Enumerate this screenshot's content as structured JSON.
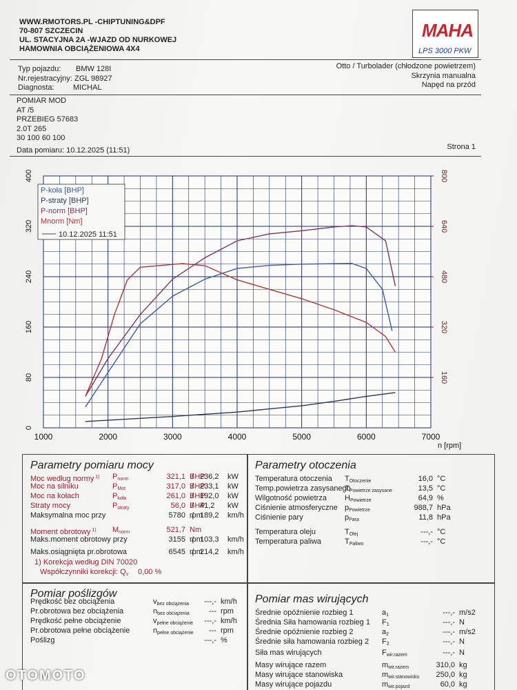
{
  "header": {
    "lines": [
      "WWW.RMOTORS.PL -CHIPTUNING&DPF",
      "70-807 SZCZECIN",
      "UL. STACYJNA 2A -WJAZD OD NURKOWEJ",
      "HAMOWNIA OBCIĄŻENIOWA 4X4"
    ],
    "logo": "MAHA",
    "model": "LPS 3000 PKW"
  },
  "vehicle": {
    "rows": [
      [
        "Typ pojazdu:",
        "BMW 128I"
      ],
      [
        "Nr.rejestracyjny:",
        "ZGL 98927"
      ],
      [
        "Diagnosta:",
        "MICHAL"
      ]
    ],
    "right": [
      "Otto / Turbolader (chłodzone powietrzem)",
      "Skrzynia manualna",
      "Napęd na przód"
    ]
  },
  "notes": [
    "POMIAR MOD",
    "AT /5",
    "PRZEBIEG 57683",
    "2.0T 265",
    "30 100 60 100"
  ],
  "date": "Data pomiaru: 10.12.2025 (11:51)",
  "page": "Strona 1",
  "chart_data": {
    "type": "line",
    "xlabel": "n [rpm]",
    "xlim": [
      1000,
      7000
    ],
    "xticks": [
      1000,
      2000,
      3000,
      4000,
      5000,
      6000,
      7000
    ],
    "ylim": [
      0,
      400
    ],
    "yticks": [
      0,
      80,
      160,
      240,
      320,
      400
    ],
    "y2lim": [
      0,
      800
    ],
    "y2ticks": [
      160,
      320,
      480,
      640,
      800
    ],
    "grid": true,
    "legend": "top-left",
    "legend_date": "10.12.2025 11:51",
    "series": [
      {
        "name": "P-koła [BHP]",
        "color": "#3b5b9e",
        "x": [
          1650,
          2000,
          2500,
          3000,
          3500,
          4000,
          4500,
          5000,
          5780,
          6000,
          6250,
          6400
        ],
        "values": [
          33,
          88,
          165,
          209,
          236,
          253,
          258,
          260,
          261,
          253,
          220,
          154
        ]
      },
      {
        "name": "P-straty [BHP]",
        "color": "#27385c",
        "x": [
          1650,
          2500,
          3000,
          4000,
          5000,
          5500,
          6000,
          6450
        ],
        "values": [
          10,
          15,
          18,
          25,
          35,
          42,
          50,
          56
        ]
      },
      {
        "name": "P-norm [BHP]",
        "color": "#7d3463",
        "x": [
          1650,
          2000,
          2500,
          3000,
          3500,
          4000,
          4500,
          5000,
          5500,
          5780,
          6000,
          6300,
          6450
        ],
        "values": [
          50,
          110,
          180,
          236,
          270,
          297,
          308,
          313,
          319,
          321,
          319,
          297,
          225
        ]
      },
      {
        "name": "Mnorm [Nm]",
        "color": "#b23434",
        "axis": "y2",
        "x": [
          1650,
          1900,
          2100,
          2300,
          2500,
          3155,
          3500,
          4000,
          4500,
          5000,
          5500,
          6000,
          6300,
          6450
        ],
        "values": [
          100,
          220,
          360,
          470,
          510,
          521.7,
          515,
          470,
          440,
          410,
          375,
          335,
          290,
          240
        ]
      }
    ]
  },
  "power": {
    "title": "Parametry pomiaru mocy",
    "rows": [
      {
        "label": "Moc według normy",
        "note": "1)",
        "symbol": {
          "main": "P",
          "sub": "norm"
        },
        "value": "321,1",
        "unit": "BHP",
        "sep": "/",
        "value2": "236,2",
        "unit2": "kW"
      },
      {
        "label": "Moc na silniku",
        "symbol": {
          "main": "P",
          "sub": "Mot"
        },
        "value": "317,0",
        "unit": "BHP",
        "sep": "/",
        "value2": "233,1",
        "unit2": "kW"
      },
      {
        "label": "Moc na kołach",
        "symbol": {
          "main": "P",
          "sub": "koła"
        },
        "value": "261,0",
        "unit": "BHP",
        "sep": "/",
        "value2": "192,0",
        "unit2": "kW"
      },
      {
        "label": "Straty mocy",
        "symbol": {
          "main": "P",
          "sub": "straty"
        },
        "value": "56,0",
        "unit": "BHP",
        "sep": "/",
        "value2": "41,2",
        "unit2": "kW"
      },
      {
        "label": "Maksymalna moc przy",
        "value": "5780",
        "unit": "rpm",
        "sep": "/",
        "value2": "189,2",
        "unit2": "km/h"
      },
      {
        "label": "Moment obrotowy",
        "note": "1)",
        "symbol": {
          "main": "M",
          "sub": "norm"
        },
        "value": "521,7",
        "unit": "Nm"
      },
      {
        "label": "Maks.moment obrotowy przy",
        "value": "3155",
        "unit": "rpm",
        "sep": "/",
        "value2": "103,3",
        "unit2": "km/h"
      },
      {
        "label": "Maks.osiągnięta pr.obrotowa",
        "value": "6545",
        "unit": "rpm",
        "sep": "/",
        "value2": "214,2",
        "unit2": "km/h"
      }
    ],
    "footnote": "1) Korekcja według DIN 70020",
    "correction": {
      "text": "Współczynniki korekcji: Q",
      "sub": "v",
      "value": "0,00 %"
    }
  },
  "ambient": {
    "title": "Parametry otoczenia",
    "rows": [
      {
        "label": "Temperatura otoczenia",
        "symbol": {
          "main": "T",
          "sub": "Otoczenie"
        },
        "value": "16,0",
        "unit": "°C"
      },
      {
        "label": "Temp.powietrza zasysanego",
        "symbol": {
          "main": "T",
          "sub": "Powietrze zasysane"
        },
        "value": "13,5",
        "unit": "°C"
      },
      {
        "label": "Wilgotność powietrza",
        "symbol": {
          "main": "H",
          "sub": "Powietrze"
        },
        "value": "64,9",
        "unit": "%"
      },
      {
        "label": "Ciśnienie atmosferyczne",
        "symbol": {
          "main": "p",
          "sub": "Powietrze"
        },
        "value": "988,7",
        "unit": "hPa"
      },
      {
        "label": "Ciśnienie pary",
        "symbol": {
          "main": "p",
          "sub": "Para"
        },
        "value": "11,8",
        "unit": "hPa"
      },
      {
        "label": "Temperatura oleju",
        "symbol": {
          "main": "T",
          "sub": "Olej"
        },
        "value": "---,-",
        "unit": "°C"
      },
      {
        "label": "Temperatura paliwa",
        "symbol": {
          "main": "T",
          "sub": "Paliwo"
        },
        "value": "---,-",
        "unit": "°C"
      }
    ]
  },
  "slip": {
    "title": "Pomiar poślizgów",
    "rows": [
      {
        "label": "Prędkość bez obciążenia",
        "symbol": {
          "main": "v",
          "sub": "bez obciążenia"
        },
        "value": "---,-",
        "unit": "km/h"
      },
      {
        "label": "Pr.obrotowa bez obciążenia",
        "symbol": {
          "main": "n",
          "sub": "bez obciążenia"
        },
        "value": "---",
        "unit": "rpm"
      },
      {
        "label": "Prędkość pełne obciążenie",
        "symbol": {
          "main": "v",
          "sub": "pełne obciążenie"
        },
        "value": "---,-",
        "unit": "km/h"
      },
      {
        "label": "Pr.obrotowa pełne obciążenie",
        "symbol": {
          "main": "n",
          "sub": "pełne obciążenie"
        },
        "value": "---",
        "unit": "rpm"
      },
      {
        "label": "Poślizg",
        "value": "---,-",
        "unit": "%"
      }
    ]
  },
  "masses": {
    "title": "Pomiar mas wirujących",
    "rows": [
      {
        "label": "Średnie opóźnienie rozbieg 1",
        "symbol": {
          "main": "a",
          "sub": "1"
        },
        "value": "---,-",
        "unit": "m/s2"
      },
      {
        "label": "Średnia Siła hamowania rozbieg 1",
        "symbol": {
          "main": "F",
          "sub": "1"
        },
        "value": "---,-",
        "unit": "N"
      },
      {
        "label": "Średnie opóźnienie rozbieg 2",
        "symbol": {
          "main": "a",
          "sub": "2"
        },
        "value": "---,-",
        "unit": "m/s2"
      },
      {
        "label": "Średnie siła hamowania rozbieg 2",
        "symbol": {
          "main": "F",
          "sub": "2"
        },
        "value": "---,-",
        "unit": "N"
      },
      {
        "label": "Siła mas wirujących",
        "symbol": {
          "main": "F",
          "sub": "wir.razem"
        },
        "value": "---,-",
        "unit": "N"
      },
      {
        "label": "Masy wirujące razem",
        "symbol": {
          "main": "m",
          "sub": "wir.razem"
        },
        "value": "310,0",
        "unit": "kg"
      },
      {
        "label": "Masy wirujące stanowiska",
        "symbol": {
          "main": "m",
          "sub": "wir.stanowisko"
        },
        "value": "250,0",
        "unit": "kg"
      },
      {
        "label": "Masy wirujące pojazdu",
        "symbol": {
          "main": "m",
          "sub": "wir.pojazd"
        },
        "value": "60,0",
        "unit": "kg"
      }
    ]
  },
  "watermark": "OTOMOTO"
}
